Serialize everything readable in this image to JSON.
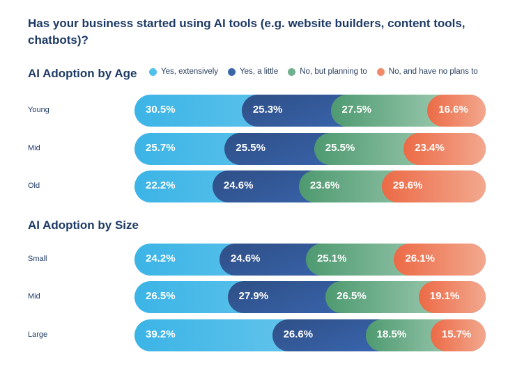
{
  "title": "Has your business started using AI tools (e.g. website builders, content tools, chatbots)?",
  "legend": [
    {
      "label": "Yes, extensively",
      "color": "#4fc1ea"
    },
    {
      "label": "Yes, a little",
      "color": "#3d66a8"
    },
    {
      "label": "No, but planning to",
      "color": "#6fb08f"
    },
    {
      "label": "No, and have no plans to",
      "color": "#f08a6a"
    }
  ],
  "chart_data": [
    {
      "type": "bar",
      "orientation": "horizontal-stacked",
      "title": "AI Adoption by Age",
      "categories": [
        "Young",
        "Mid",
        "Old"
      ],
      "series": [
        {
          "name": "Yes, extensively",
          "values": [
            30.5,
            25.7,
            22.2
          ]
        },
        {
          "name": "Yes, a little",
          "values": [
            25.3,
            25.5,
            24.6
          ]
        },
        {
          "name": "No, but planning to",
          "values": [
            27.5,
            25.5,
            23.6
          ]
        },
        {
          "name": "No, and have no plans to",
          "values": [
            16.6,
            23.4,
            29.6
          ]
        }
      ],
      "labels": [
        [
          "30.5%",
          "25.3%",
          "27.5%",
          "16.6%"
        ],
        [
          "25.7%",
          "25.5%",
          "25.5%",
          "23.4%"
        ],
        [
          "22.2%",
          "24.6%",
          "23.6%",
          "29.6%"
        ]
      ]
    },
    {
      "type": "bar",
      "orientation": "horizontal-stacked",
      "title": "AI Adoption by Size",
      "categories": [
        "Small",
        "Mid",
        "Large"
      ],
      "series": [
        {
          "name": "Yes, extensively",
          "values": [
            24.2,
            26.5,
            39.2
          ]
        },
        {
          "name": "Yes, a little",
          "values": [
            24.6,
            27.9,
            26.6
          ]
        },
        {
          "name": "No, but planning to",
          "values": [
            25.1,
            26.5,
            18.5
          ]
        },
        {
          "name": "No, and have no plans to",
          "values": [
            26.1,
            19.1,
            15.7
          ]
        }
      ],
      "labels": [
        [
          "24.2%",
          "24.6%",
          "25.1%",
          "26.1%"
        ],
        [
          "26.5%",
          "27.9%",
          "26.5%",
          "19.1%"
        ],
        [
          "39.2%",
          "26.6%",
          "18.5%",
          "15.7%"
        ]
      ]
    }
  ]
}
